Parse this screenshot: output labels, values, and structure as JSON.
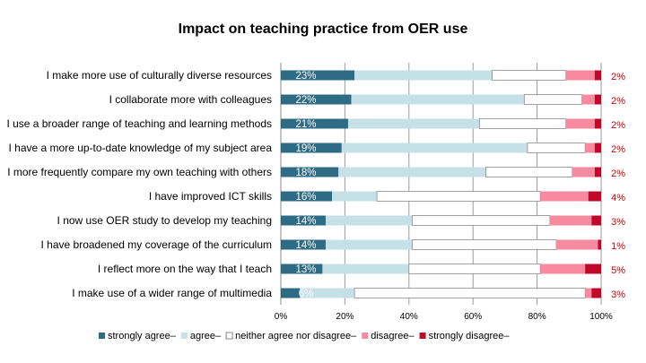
{
  "chart_data": {
    "type": "bar",
    "orientation": "horizontal",
    "stacked": true,
    "title": "Impact on teaching practice from OER use",
    "categories": [
      "I make more use of culturally diverse resources",
      "I collaborate more with colleagues",
      "I use a broader range of teaching and learning methods",
      "I have a more up-to-date knowledge of my subject area",
      "I more frequently compare my own teaching with others",
      "I have improved ICT skills",
      "I now use OER study to develop my teaching",
      "I have broadened my coverage of the curriculum",
      "I reflect more on the way that I teach",
      "I make use of a wider range of multimedia"
    ],
    "series": [
      {
        "name": "strongly agree",
        "color": "#2e6b85",
        "values": [
          23,
          22,
          21,
          19,
          18,
          16,
          14,
          14,
          13,
          6
        ],
        "labels": [
          "23%",
          "22%",
          "21%",
          "19%",
          "18%",
          "16%",
          "14%",
          "14%",
          "13%",
          "6%"
        ]
      },
      {
        "name": "agree",
        "color": "#c6e0e8",
        "values": [
          43,
          54,
          41,
          58,
          46,
          14,
          27,
          27,
          27,
          17
        ]
      },
      {
        "name": "neither agree nor disagree",
        "color": "#ffffff",
        "values": [
          23,
          18,
          27,
          18,
          27,
          51,
          43,
          45,
          41,
          72
        ]
      },
      {
        "name": "disagree",
        "color": "#f78a9e",
        "values": [
          9,
          4,
          9,
          3,
          7,
          15,
          13,
          13,
          14,
          2
        ]
      },
      {
        "name": "strongly disagree",
        "color": "#c0082a",
        "values": [
          2,
          2,
          2,
          2,
          2,
          4,
          3,
          1,
          5,
          3
        ],
        "labels": [
          "2%",
          "2%",
          "2%",
          "2%",
          "2%",
          "4%",
          "3%",
          "1%",
          "5%",
          "3%"
        ]
      }
    ],
    "xlim": [
      0,
      100
    ],
    "x_ticks": [
      "0%",
      "20%",
      "40%",
      "60%",
      "80%",
      "100%"
    ],
    "grid": "vertical",
    "legend": {
      "position": "bottom",
      "entries": [
        "strongly agree–",
        "agree–",
        "neither agree nor disagree–",
        "disagree–",
        "strongly disagree–"
      ]
    }
  }
}
